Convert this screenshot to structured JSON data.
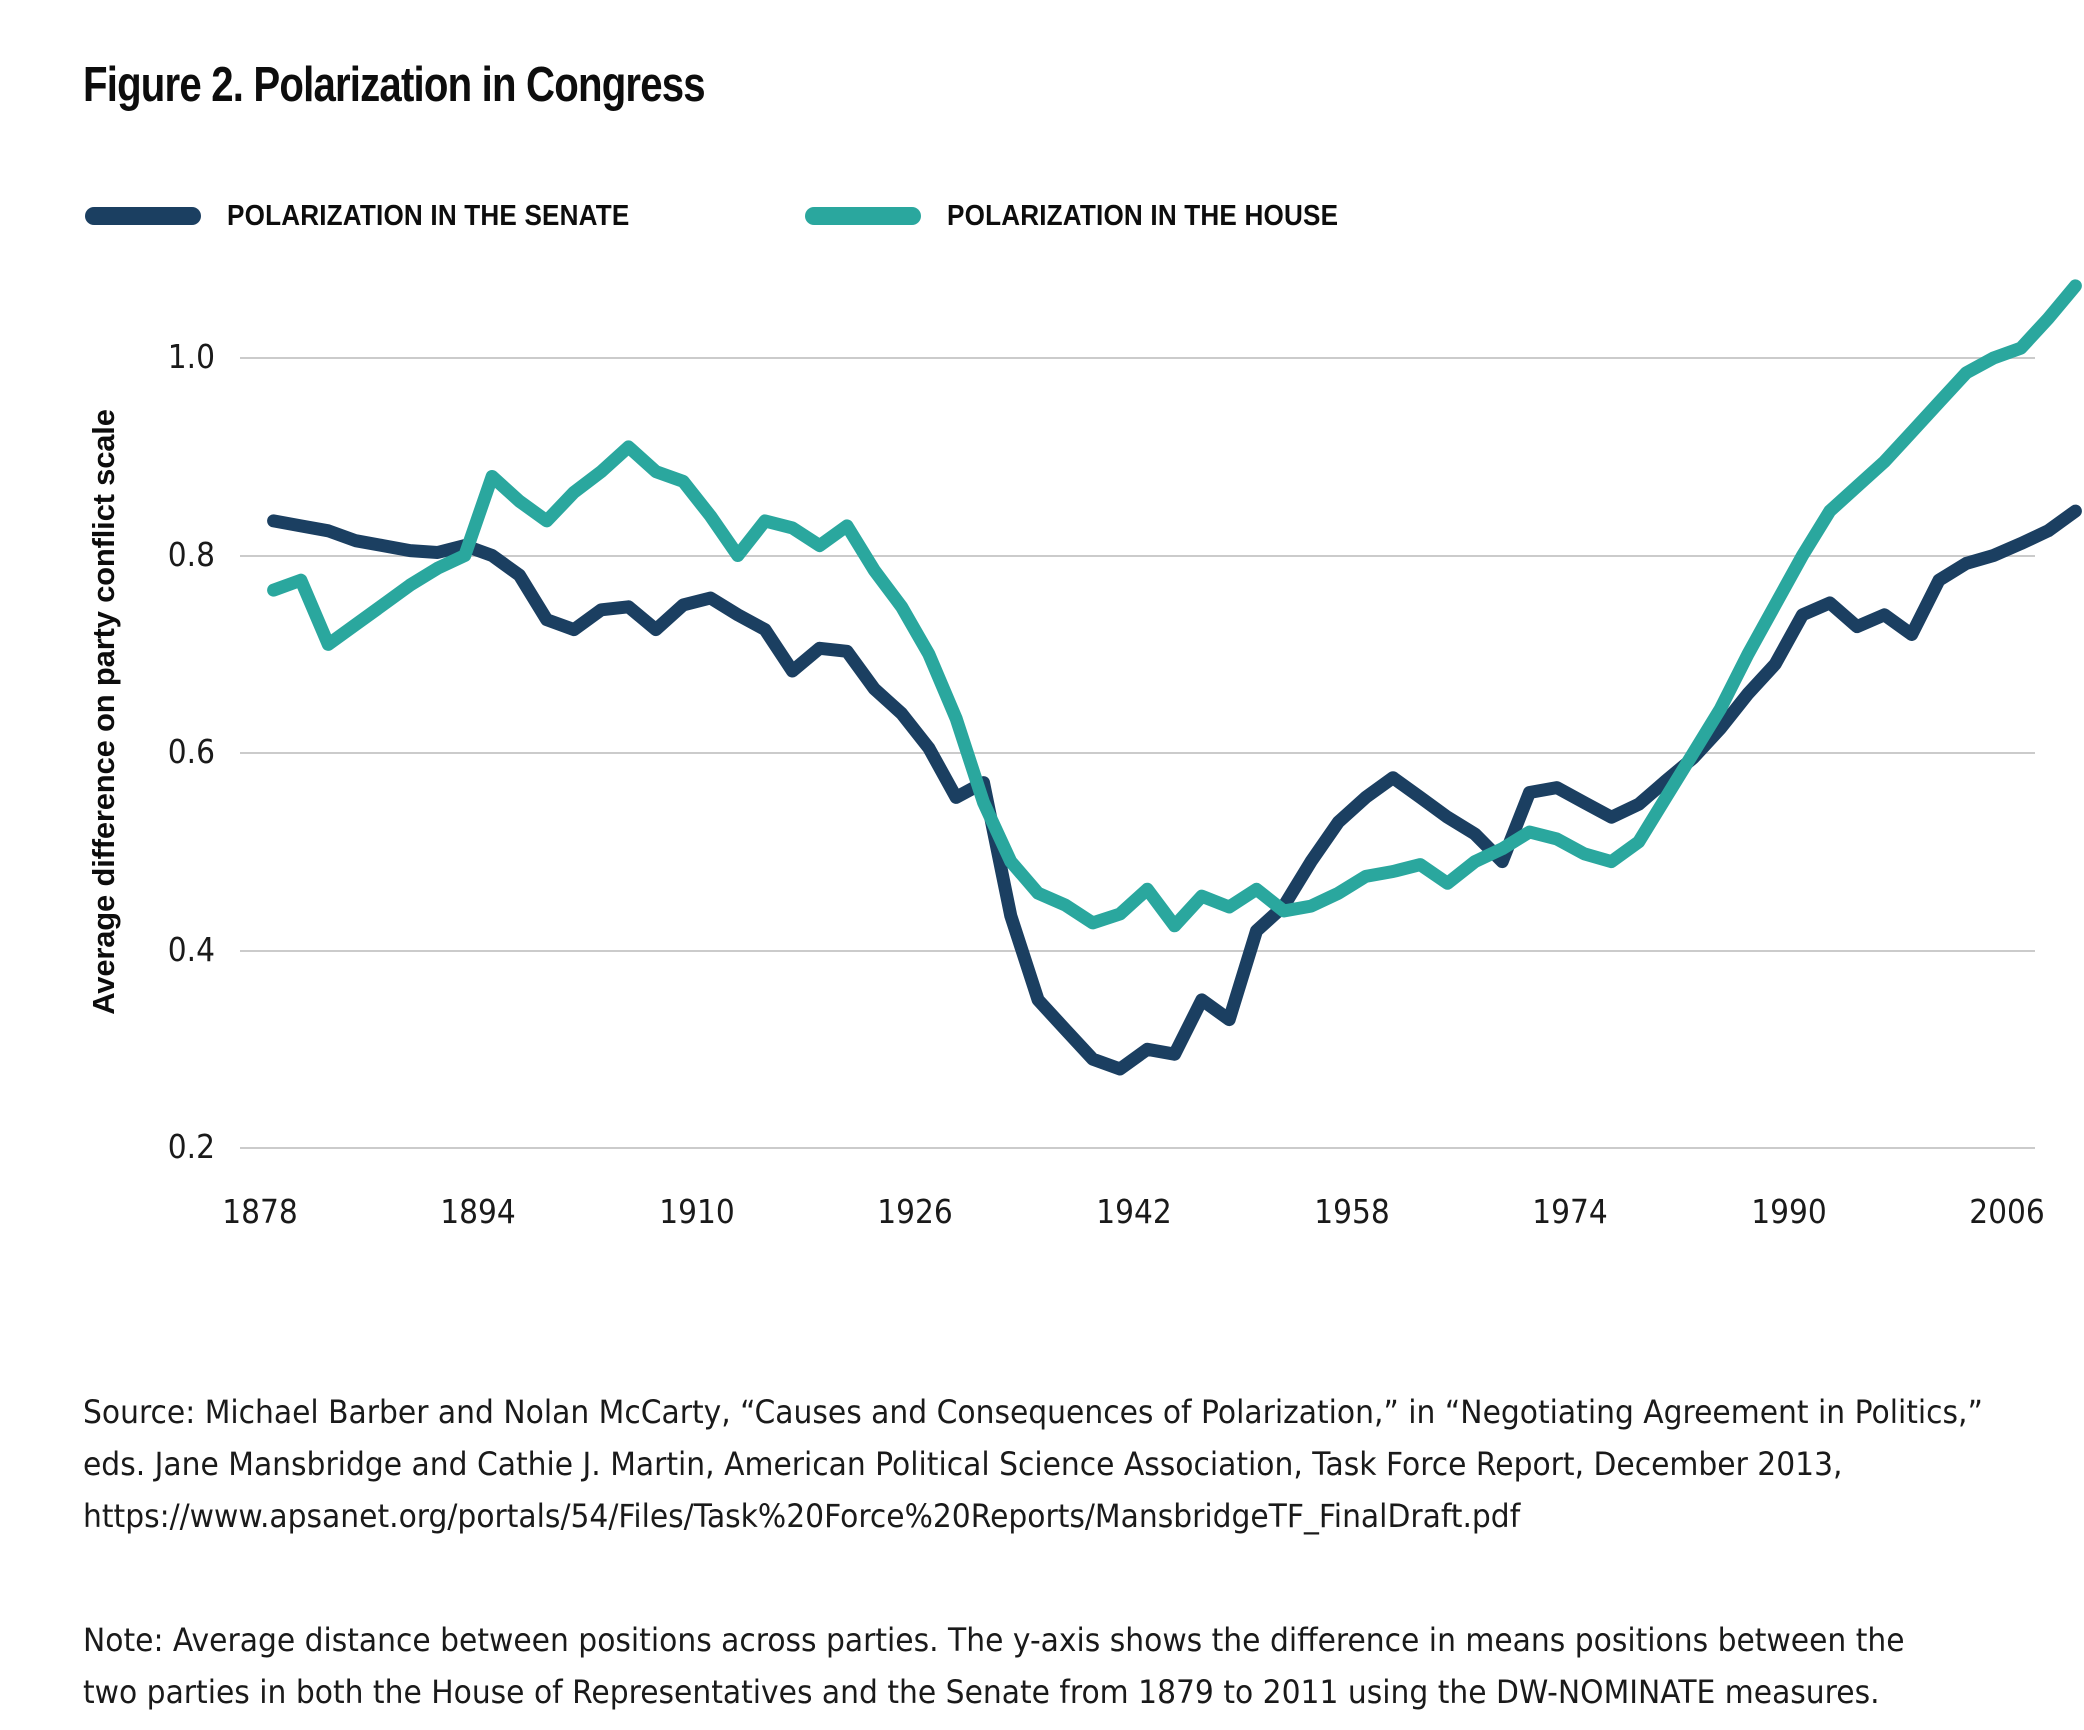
{
  "title": "Figure 2. Polarization in Congress",
  "legend": {
    "senate_label": "POLARIZATION IN THE SENATE",
    "house_label": "POLARIZATION IN THE HOUSE"
  },
  "colors": {
    "senate": "#1b3f61",
    "house": "#2aa79e",
    "gridline": "#cbcbcb"
  },
  "y_axis_title": "Average difference on party conflict scale",
  "source": {
    "lines": [
      "Source: Michael Barber and Nolan McCarty, “Causes and Consequences of Polarization,” in “Negotiating Agreement in Politics,”",
      "eds. Jane Mansbridge and Cathie J. Martin, American Political Science Association, Task Force Report, December 2013,",
      "https://www.apsanet.org/portals/54/Files/Task%20Force%20Reports/MansbridgeTF_FinalDraft.pdf"
    ]
  },
  "note": {
    "lines": [
      "Note: Average distance between positions across parties. The y-axis shows the difference in means positions between the",
      "two parties in both the House of Representatives and the Senate from 1879 to 2011 using the DW-NOMINATE measures."
    ]
  },
  "chart_data": {
    "type": "line",
    "title": "Figure 2. Polarization in Congress",
    "xlabel": "",
    "ylabel": "Average difference on party conflict scale",
    "grid": "horizontal",
    "legend_position": "top-left",
    "x_ticks": [
      1878,
      1894,
      1910,
      1926,
      1942,
      1958,
      1974,
      1990,
      2006
    ],
    "y_ticks": [
      0.2,
      0.4,
      0.6,
      0.8,
      1.0
    ],
    "xlim": [
      1878,
      2012
    ],
    "ylim": [
      0.13,
      1.12
    ],
    "x": [
      1879,
      1881,
      1883,
      1885,
      1887,
      1889,
      1891,
      1893,
      1895,
      1897,
      1899,
      1901,
      1903,
      1905,
      1907,
      1909,
      1911,
      1913,
      1915,
      1917,
      1919,
      1921,
      1923,
      1925,
      1927,
      1929,
      1931,
      1933,
      1935,
      1937,
      1939,
      1941,
      1943,
      1945,
      1947,
      1949,
      1951,
      1953,
      1955,
      1957,
      1959,
      1961,
      1963,
      1965,
      1967,
      1969,
      1971,
      1973,
      1975,
      1977,
      1979,
      1981,
      1983,
      1985,
      1987,
      1989,
      1991,
      1993,
      1995,
      1997,
      1999,
      2001,
      2003,
      2005,
      2007,
      2009,
      2011
    ],
    "series": [
      {
        "name": "Polarization in the Senate",
        "color_key": "senate",
        "values": [
          0.835,
          0.83,
          0.825,
          0.815,
          0.81,
          0.805,
          0.803,
          0.81,
          0.8,
          0.78,
          0.735,
          0.725,
          0.745,
          0.748,
          0.725,
          0.75,
          0.757,
          0.74,
          0.725,
          0.683,
          0.706,
          0.703,
          0.665,
          0.64,
          0.605,
          0.555,
          0.57,
          0.435,
          0.35,
          0.32,
          0.29,
          0.28,
          0.3,
          0.295,
          0.35,
          0.33,
          0.42,
          0.445,
          0.49,
          0.53,
          0.555,
          0.575,
          0.555,
          0.535,
          0.518,
          0.49,
          0.56,
          0.565,
          0.55,
          0.535,
          0.548,
          0.572,
          0.595,
          0.625,
          0.66,
          0.69,
          0.74,
          0.752,
          0.728,
          0.74,
          0.72,
          0.775,
          0.792,
          0.8,
          0.812,
          0.825,
          0.845
        ]
      },
      {
        "name": "Polarization in the House",
        "color_key": "house",
        "values": [
          0.765,
          0.775,
          0.71,
          0.73,
          0.75,
          0.77,
          0.787,
          0.8,
          0.88,
          0.855,
          0.835,
          0.864,
          0.885,
          0.91,
          0.885,
          0.875,
          0.84,
          0.8,
          0.835,
          0.828,
          0.81,
          0.83,
          0.785,
          0.748,
          0.7,
          0.635,
          0.55,
          0.49,
          0.458,
          0.446,
          0.428,
          0.437,
          0.462,
          0.425,
          0.455,
          0.444,
          0.462,
          0.44,
          0.445,
          0.458,
          0.475,
          0.48,
          0.487,
          0.468,
          0.49,
          0.503,
          0.52,
          0.513,
          0.498,
          0.49,
          0.51,
          0.555,
          0.6,
          0.645,
          0.7,
          0.75,
          0.8,
          0.845,
          0.87,
          0.895,
          0.925,
          0.955,
          0.985,
          1.0,
          1.01,
          1.04,
          1.073
        ]
      }
    ]
  }
}
